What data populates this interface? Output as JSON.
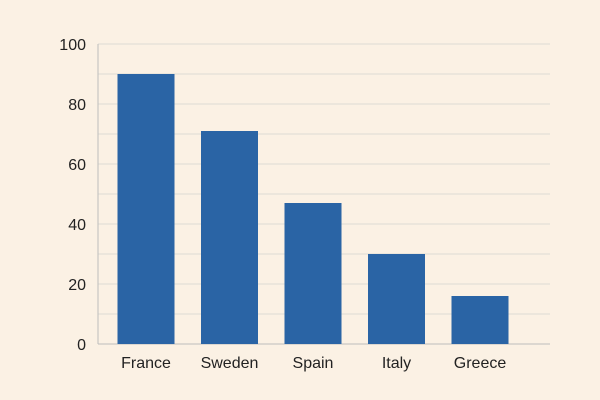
{
  "colors": {
    "background": "#fbf1e4",
    "bar": "#2a64a5",
    "grid": "#dedcd3",
    "axis": "#bdbdbd",
    "text": "#222222"
  },
  "chart_data": {
    "type": "bar",
    "categories": [
      "France",
      "Sweden",
      "Spain",
      "Italy",
      "Greece"
    ],
    "values": [
      90,
      71,
      47,
      30,
      16
    ],
    "title": "",
    "xlabel": "",
    "ylabel": "",
    "ylim": [
      0,
      100
    ],
    "y_tick_labels": [
      "0",
      "20",
      "40",
      "60",
      "80",
      "100"
    ],
    "grid": true,
    "legend": "none"
  }
}
